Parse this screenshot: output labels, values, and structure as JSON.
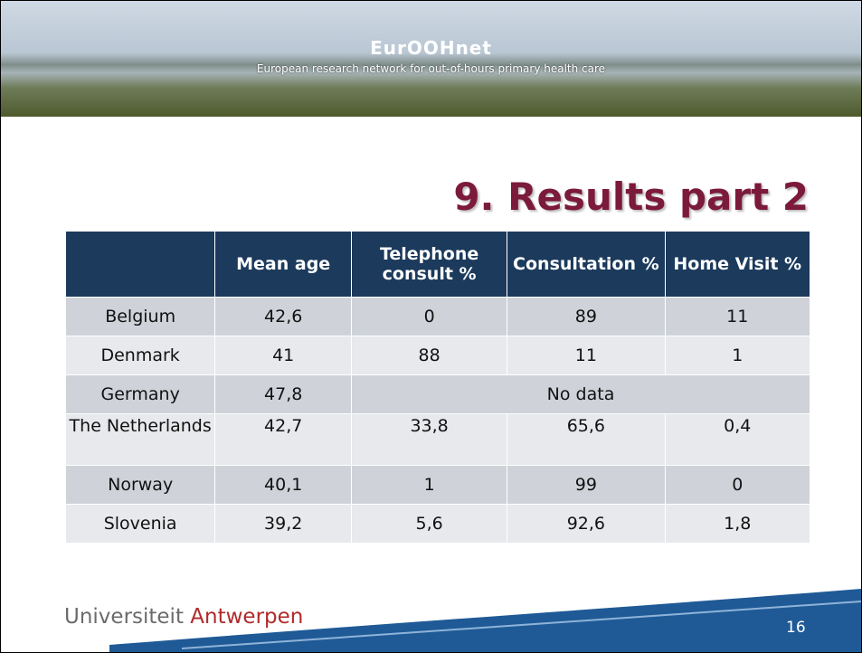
{
  "header": {
    "title": "EurOOHnet",
    "subtitle": "European research network for out-of-hours primary health care"
  },
  "slide_title": "9. Results part 2",
  "table": {
    "columns": [
      "",
      "Mean age",
      "Telephone consult %",
      "Consultation %",
      "Home Visit %"
    ],
    "rows": [
      [
        "Belgium",
        "42,6",
        "0",
        "89",
        "11"
      ],
      [
        "Denmark",
        "41",
        "88",
        "11",
        "1"
      ],
      [
        "Germany",
        "47,8",
        "No data"
      ],
      [
        "The Netherlands",
        "42,7",
        "33,8",
        "65,6",
        "0,4"
      ],
      [
        "Norway",
        "40,1",
        "1",
        "99",
        "0"
      ],
      [
        "Slovenia",
        "39,2",
        "5,6",
        "92,6",
        "1,8"
      ]
    ]
  },
  "footer": {
    "brand_first": "Universiteit",
    "brand_second": "Antwerpen",
    "page_number": "16"
  }
}
